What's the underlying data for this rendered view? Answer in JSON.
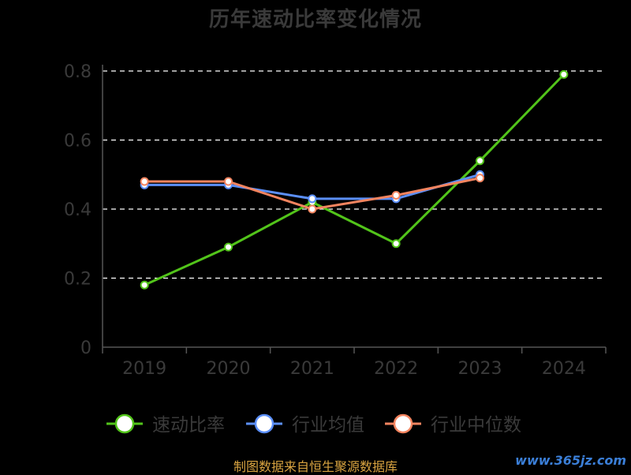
{
  "chart_data": {
    "type": "line",
    "title": "历年速动比率变化情况",
    "categories": [
      "2019",
      "2020",
      "2021",
      "2022",
      "2023",
      "2024"
    ],
    "yticks": [
      "0",
      "0.2",
      "0.4",
      "0.6",
      "0.8"
    ],
    "ylim": [
      0,
      0.8
    ],
    "grid": "horizontal dashed",
    "legend_position": "bottom",
    "series": [
      {
        "name": "速动比率",
        "color": "#52c41a",
        "values": [
          0.18,
          0.29,
          0.42,
          0.3,
          0.54,
          0.79
        ]
      },
      {
        "name": "行业均值",
        "color": "#5b8ff9",
        "values": [
          0.47,
          0.47,
          0.43,
          0.43,
          0.5,
          null
        ]
      },
      {
        "name": "行业中位数",
        "color": "#f4845f",
        "values": [
          0.48,
          0.48,
          0.4,
          0.44,
          0.49,
          null
        ]
      }
    ]
  },
  "footer": {
    "source": "制图数据来自恒生聚源数据库",
    "watermark": "www.365jz.com"
  }
}
